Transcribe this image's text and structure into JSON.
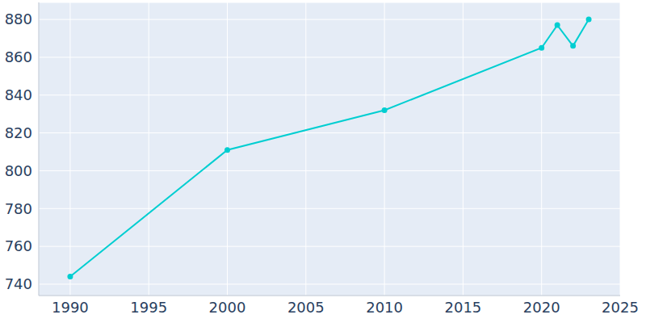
{
  "chart_data": {
    "type": "line",
    "x": [
      1990,
      2000,
      2010,
      2020,
      2021,
      2022,
      2023
    ],
    "values": [
      744,
      811,
      832,
      865,
      877,
      866,
      880
    ],
    "color": "#00ced1",
    "xlim": [
      1988,
      2025
    ],
    "ylim": [
      734,
      889
    ],
    "xticks": [
      1990,
      1995,
      2000,
      2005,
      2010,
      2015,
      2020,
      2025
    ],
    "yticks": [
      740,
      760,
      780,
      800,
      820,
      840,
      860,
      880
    ],
    "grid": true,
    "marker": "circle"
  }
}
